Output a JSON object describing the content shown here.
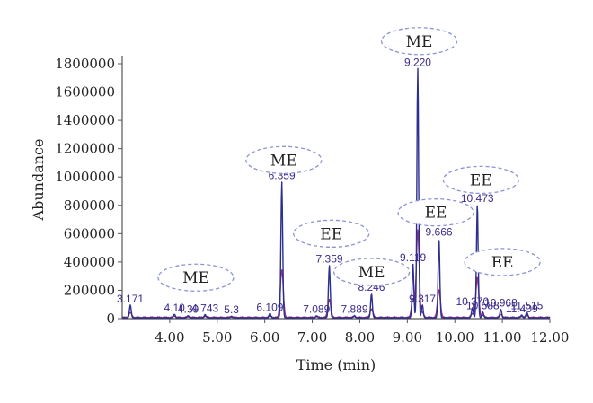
{
  "chart_data": {
    "type": "line",
    "xlabel": "Time (min)",
    "ylabel": "Abundance",
    "xlim": [
      3.0,
      12.0
    ],
    "ylim": [
      0,
      1800000
    ],
    "x_ticks": [
      "4.00",
      "5.00",
      "6.00",
      "7.00",
      "8.00",
      "9.00",
      "10.00",
      "11.00",
      "12.00"
    ],
    "y_ticks": [
      "0",
      "200000",
      "400000",
      "600000",
      "800000",
      "1000000",
      "1200000",
      "1400000",
      "1600000",
      "1800000"
    ],
    "peaks": [
      {
        "label": "3.171",
        "x": 3.171,
        "y": 90000
      },
      {
        "label": "4.10",
        "x": 4.1,
        "y": 25000
      },
      {
        "label": "4.743",
        "x": 4.743,
        "y": 22000
      },
      {
        "label": "4.39",
        "x": 4.39,
        "y": 15000
      },
      {
        "label": "5.3",
        "x": 5.3,
        "y": 12000
      },
      {
        "label": "6.109",
        "x": 6.109,
        "y": 30000
      },
      {
        "label": "6.359",
        "x": 6.359,
        "y": 960000
      },
      {
        "label": "7.089",
        "x": 7.089,
        "y": 15000
      },
      {
        "label": "7.359",
        "x": 7.359,
        "y": 370000
      },
      {
        "label": "7.889",
        "x": 7.889,
        "y": 15000
      },
      {
        "label": "8.246",
        "x": 8.246,
        "y": 170000
      },
      {
        "label": "9.119",
        "x": 9.119,
        "y": 380000
      },
      {
        "label": "9.220",
        "x": 9.22,
        "y": 1760000
      },
      {
        "label": "9.317",
        "x": 9.317,
        "y": 90000
      },
      {
        "label": "9.666",
        "x": 9.666,
        "y": 560000
      },
      {
        "label": "10.370",
        "x": 10.37,
        "y": 70000
      },
      {
        "label": "10.473",
        "x": 10.473,
        "y": 800000
      },
      {
        "label": "10.588",
        "x": 10.588,
        "y": 40000
      },
      {
        "label": "10.968",
        "x": 10.968,
        "y": 60000
      },
      {
        "label": "11.515",
        "x": 11.515,
        "y": 40000
      },
      {
        "label": "11.409",
        "x": 11.409,
        "y": 20000
      }
    ],
    "annotations": [
      {
        "text": "ME",
        "x": 4.55,
        "y": 290000
      },
      {
        "text": "ME",
        "x": 6.4,
        "y": 1120000
      },
      {
        "text": "EE",
        "x": 7.4,
        "y": 600000
      },
      {
        "text": "ME",
        "x": 8.25,
        "y": 330000
      },
      {
        "text": "ME",
        "x": 9.25,
        "y": 1960000
      },
      {
        "text": "EE",
        "x": 9.6,
        "y": 750000
      },
      {
        "text": "EE",
        "x": 10.55,
        "y": 980000
      },
      {
        "text": "EE",
        "x": 11.0,
        "y": 400000
      }
    ],
    "colors": {
      "trace_primary": "#2b2f8f",
      "trace_secondary": "#9a2f7a",
      "label": "#3a2a8a",
      "ellipse": "#8a92d6"
    }
  }
}
